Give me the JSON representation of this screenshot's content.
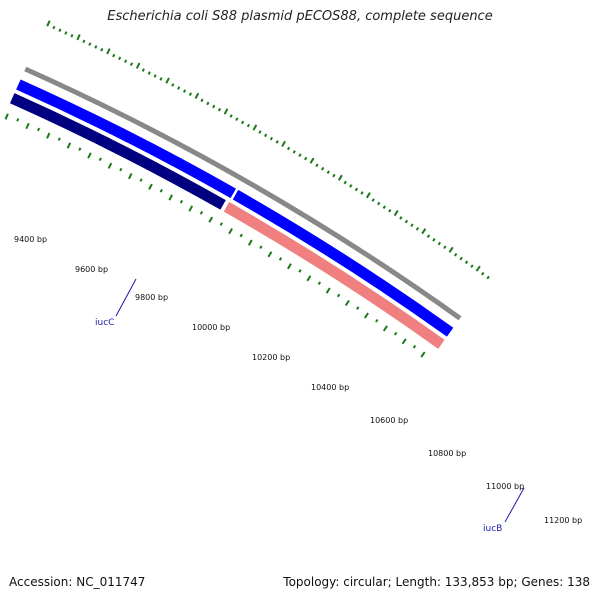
{
  "title": "Escherichia coli S88 plasmid pECOS88, complete sequence",
  "accession": "Accession: NC_011747",
  "topology": "Topology: circular; Length: 133,853 bp; Genes: 138",
  "scale_labels": [
    "9400 bp",
    "9600 bp",
    "9800 bp",
    "10000 bp",
    "10200 bp",
    "10400 bp",
    "10600 bp",
    "10800 bp",
    "11000 bp",
    "11200 bp"
  ],
  "genes": [
    {
      "name": "iucC",
      "color": "#000080",
      "strand": "reverse"
    },
    {
      "name": "iucB",
      "color": "#f08080",
      "strand": "reverse"
    }
  ],
  "colors": {
    "backbone": "#888888",
    "forward_feature": "#0000ff",
    "tick": "#1a7a1a"
  }
}
